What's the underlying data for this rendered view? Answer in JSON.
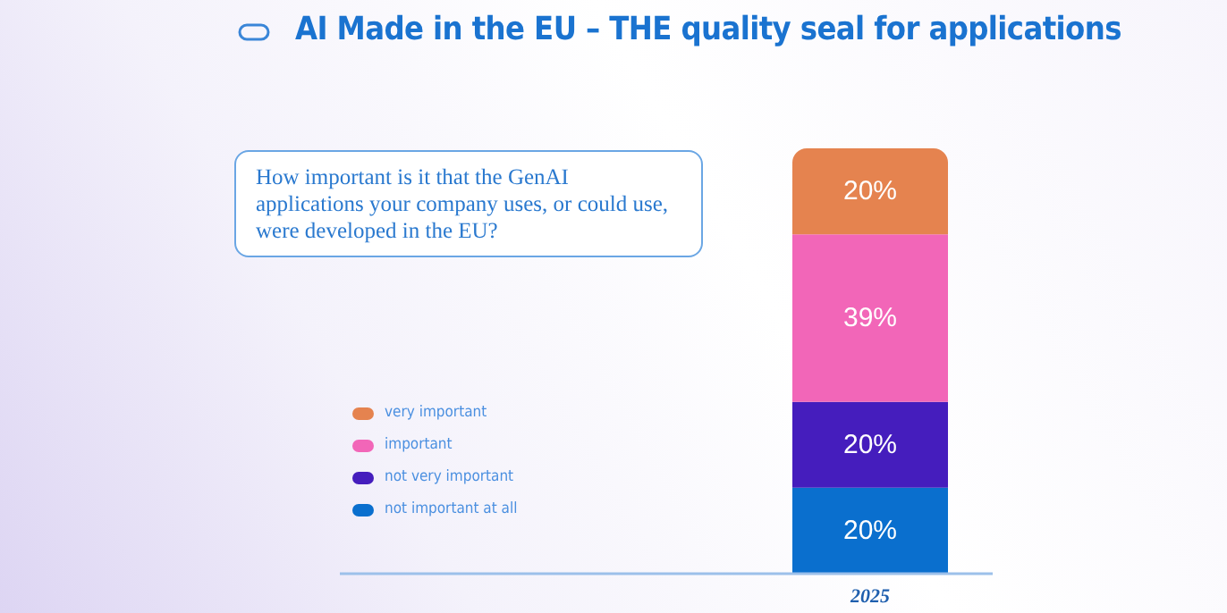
{
  "chart_data": {
    "type": "bar",
    "title": "AI Made in the EU – THE quality seal for applications",
    "annotations": [
      "How important is it that the GenAI applications your company uses, or could use, were developed in the EU?"
    ],
    "categories": [
      "2025"
    ],
    "stacked": true,
    "legend": "bottom left",
    "series": [
      {
        "name": "not important at all",
        "color": "#0a6fce",
        "values": [
          20
        ],
        "value_labels": [
          "20%"
        ]
      },
      {
        "name": "not very important",
        "color": "#451dbd",
        "values": [
          20
        ],
        "value_labels": [
          "20%"
        ]
      },
      {
        "name": "important",
        "color": "#f266b8",
        "values": [
          39
        ],
        "value_labels": [
          "39%"
        ]
      },
      {
        "name": "very important",
        "color": "#e5834f",
        "values": [
          20
        ],
        "value_labels": [
          "20%"
        ]
      }
    ]
  }
}
